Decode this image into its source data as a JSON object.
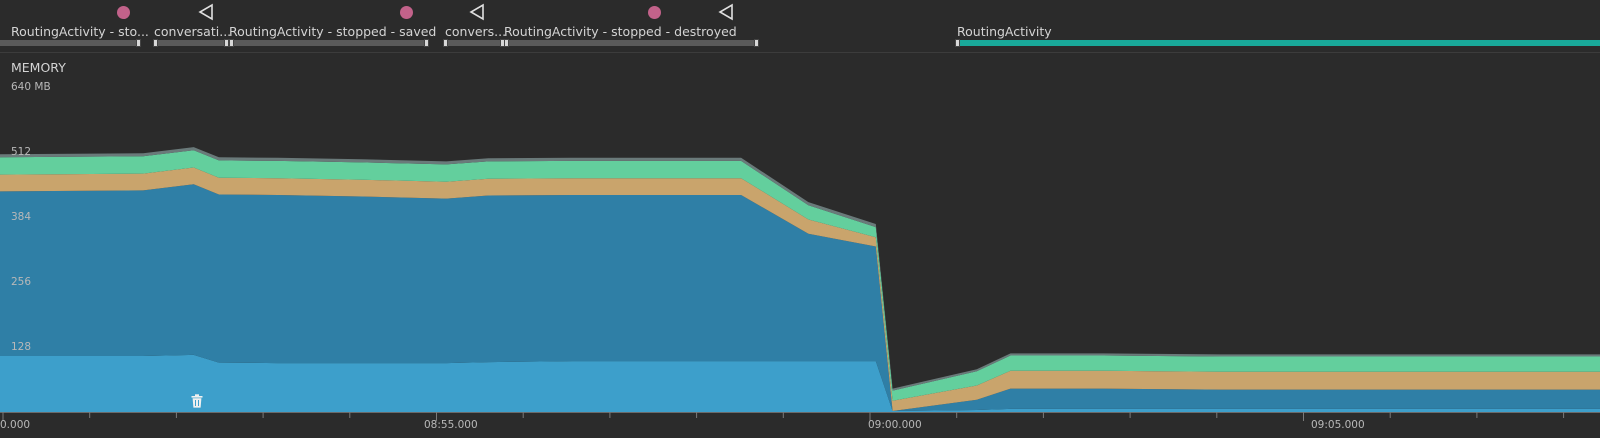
{
  "events": {
    "activities": [
      {
        "label": "RoutingActivity - sto..."
      },
      {
        "label": "conversati..."
      },
      {
        "label": "RoutingActivity - stopped - saved"
      },
      {
        "label": "convers..."
      },
      {
        "label": "RoutingActivity - stopped - destroyed"
      },
      {
        "label": "RoutingActivity"
      }
    ],
    "markers": [
      {
        "type": "dot",
        "icon": "touch-dot-icon"
      },
      {
        "type": "back",
        "icon": "back-triangle-icon"
      },
      {
        "type": "dot",
        "icon": "touch-dot-icon"
      },
      {
        "type": "back",
        "icon": "back-triangle-icon"
      },
      {
        "type": "dot",
        "icon": "touch-dot-icon"
      },
      {
        "type": "back",
        "icon": "back-triangle-icon"
      }
    ]
  },
  "memory": {
    "title": "MEMORY",
    "y_ticks": [
      "640 MB",
      "512",
      "384",
      "256",
      "128"
    ],
    "x_ticks": [
      "0.000",
      "08:55.000",
      "09:00.000",
      "09:05.000"
    ],
    "gc_icon": "trash-icon",
    "colors": {
      "java": "#3d9fcb",
      "native": "#2f7fa6",
      "graphics": "#c9a46c",
      "stack": "#63cf9d",
      "code": "#6a7a7a"
    }
  },
  "chart_data": {
    "type": "area",
    "title": "MEMORY",
    "ylim": [
      0,
      640
    ],
    "y_unit": "MB",
    "x": [
      "08:50.0",
      "08:51.7",
      "08:52.3",
      "08:52.6",
      "08:53.3",
      "08:54.3",
      "08:55.3",
      "08:55.8",
      "08:56.8",
      "08:57.8",
      "08:58.8",
      "08:59.6",
      "09:00.4",
      "09:00.6",
      "09:01.6",
      "09:02.0",
      "09:03.1",
      "09:04.5",
      "09:05.6",
      "09:06.5",
      "09:07.3",
      "09:08.4",
      "09:09.0"
    ],
    "series": [
      {
        "values": [
          110,
          110,
          112,
          97,
          96,
          96,
          96,
          98,
          100,
          100,
          100,
          100,
          100,
          2,
          4,
          6,
          6,
          6,
          6,
          6,
          6,
          6,
          6
        ]
      },
      {
        "values": [
          323,
          325,
          335,
          330,
          330,
          327,
          323,
          327,
          326,
          326,
          326,
          250,
          225,
          0,
          20,
          40,
          40,
          38,
          38,
          38,
          38,
          38,
          38
        ]
      },
      {
        "values": [
          33,
          33,
          33,
          33,
          33,
          33,
          33,
          33,
          33,
          33,
          33,
          28,
          18,
          20,
          28,
          35,
          35,
          35,
          35,
          35,
          35,
          35,
          35
        ]
      },
      {
        "values": [
          34,
          34,
          34,
          34,
          34,
          34,
          34,
          34,
          34,
          34,
          34,
          28,
          20,
          20,
          28,
          30,
          30,
          30,
          30,
          30,
          30,
          30,
          30
        ]
      },
      {
        "values": [
          6,
          6,
          6,
          6,
          6,
          6,
          6,
          6,
          6,
          6,
          6,
          6,
          6,
          4,
          4,
          4,
          4,
          4,
          4,
          4,
          4,
          4,
          4
        ]
      }
    ]
  }
}
